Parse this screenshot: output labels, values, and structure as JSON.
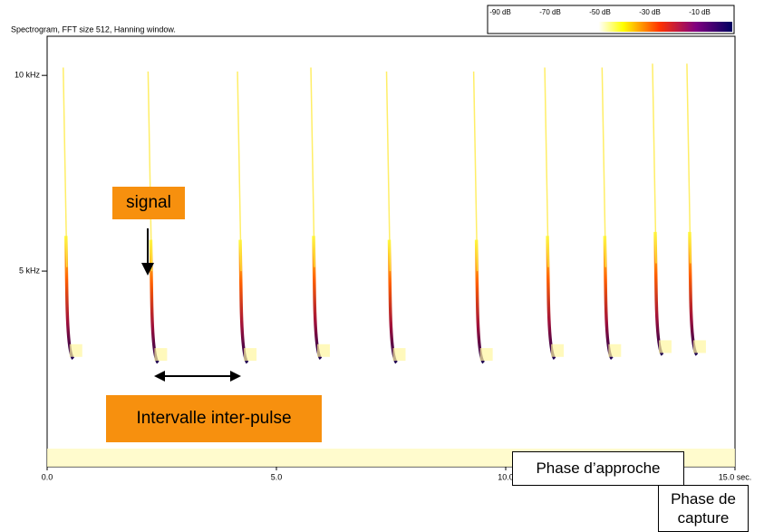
{
  "chart_data": {
    "type": "spectrogram",
    "title": "Spectrogram, FFT size 512, Hanning window.",
    "xlim": [
      0,
      15
    ],
    "ylim": [
      0,
      11
    ],
    "xticks": [
      {
        "value": 0,
        "label": "0.0"
      },
      {
        "value": 5,
        "label": "5.0"
      },
      {
        "value": 10,
        "label": "10.0"
      },
      {
        "value": 15,
        "label": "15.0 sec."
      }
    ],
    "yticks": [
      {
        "value": 5,
        "label": "5 kHz"
      },
      {
        "value": 10,
        "label": "10 kHz"
      }
    ],
    "x": [
      0.45,
      2.3,
      4.25,
      5.85,
      7.5,
      9.4,
      10.95,
      12.2,
      13.3,
      14.05
    ],
    "values": [
      2.9,
      2.8,
      2.8,
      2.9,
      2.8,
      2.8,
      2.9,
      2.9,
      3.0,
      3.0
    ],
    "color": "#5a1a6e",
    "colorbar": [
      "-90 dB",
      "-70 dB",
      "-50 dB",
      "-30 dB",
      "-10 dB"
    ],
    "annotations": {
      "signal": "signal",
      "interval": "Intervalle inter-pulse",
      "approach": "Phase d’approche",
      "capture": "Phase de capture"
    }
  }
}
